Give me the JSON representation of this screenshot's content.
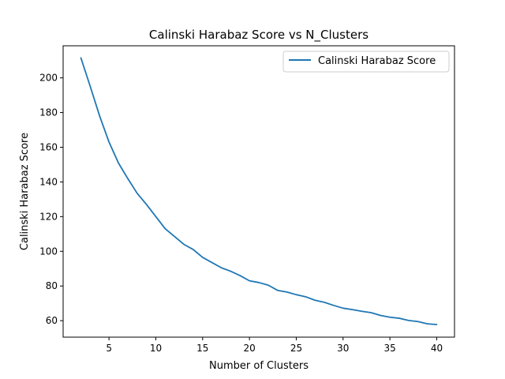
{
  "chart_data": {
    "type": "line",
    "title": "Calinski Harabaz Score vs N_Clusters",
    "xlabel": "Number of Clusters",
    "ylabel": "Calinski Harabaz Score",
    "xlim": [
      0.1,
      41.9
    ],
    "ylim": [
      50.5,
      218.5
    ],
    "xticks": [
      5,
      10,
      15,
      20,
      25,
      30,
      35,
      40
    ],
    "yticks": [
      60,
      80,
      100,
      120,
      140,
      160,
      180,
      200
    ],
    "grid": false,
    "legend_position": "top-right",
    "series": [
      {
        "name": "Calinski Harabaz Score",
        "color": "#1f77b4",
        "x": [
          2,
          3,
          4,
          5,
          6,
          7,
          8,
          9,
          10,
          11,
          12,
          13,
          14,
          15,
          16,
          17,
          18,
          19,
          20,
          21,
          22,
          23,
          24,
          25,
          26,
          27,
          28,
          29,
          30,
          31,
          32,
          33,
          34,
          35,
          36,
          37,
          38,
          39,
          40
        ],
        "y": [
          211.5,
          195,
          178,
          163,
          151,
          142,
          133.5,
          127,
          120,
          113,
          108.5,
          104,
          101,
          96.5,
          93.5,
          90.5,
          88.5,
          86,
          83,
          82,
          80.5,
          77.5,
          76.5,
          75,
          73.8,
          71.8,
          70.6,
          68.8,
          67.2,
          66.4,
          65.4,
          64.6,
          63,
          62,
          61.4,
          60.1,
          59.5,
          58.2,
          57.8
        ]
      }
    ]
  }
}
